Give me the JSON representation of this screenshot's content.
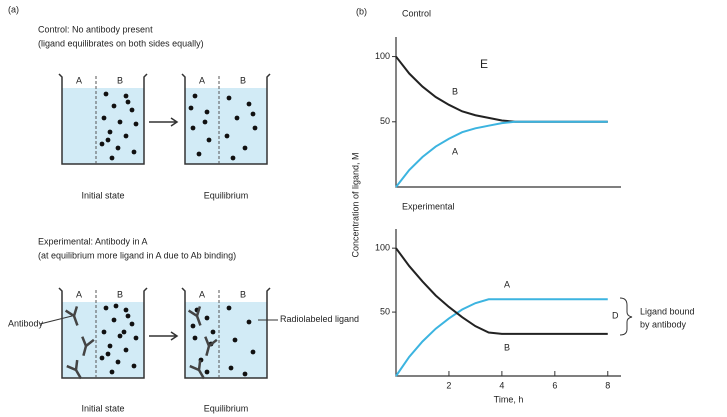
{
  "diagram": {
    "panel_label": "(a)",
    "control": {
      "title": "Control: No antibody present",
      "subtitle": "(ligand equilibrates on both sides equally)",
      "left_label": "A",
      "right_label": "B",
      "initial": "Initial state",
      "final": "Equilibrium"
    },
    "experimental": {
      "title": "Experimental: Antibody in A",
      "subtitle": "(at equilibrium more ligand in A due to Ab binding)",
      "left_label": "A",
      "right_label": "B",
      "initial": "Initial state",
      "final": "Equilibrium",
      "antibody": "Antibody",
      "ligand": "Radiolabeled ligand"
    }
  },
  "panel_b_label": "(b)",
  "chart_data": [
    {
      "type": "line",
      "title": "Control",
      "ylabel": "Concentration of ligand, M",
      "x": [
        0,
        0.5,
        1,
        1.5,
        2,
        2.5,
        3,
        3.5,
        4,
        4.5,
        5,
        6,
        7,
        8
      ],
      "series": [
        {
          "name": "B",
          "color": "#222222",
          "values": [
            100,
            87,
            77,
            69,
            63,
            58,
            55,
            53,
            51,
            50,
            50,
            50,
            50,
            50
          ]
        },
        {
          "name": "A",
          "color": "#3cb4e0",
          "values": [
            0,
            13,
            23,
            31,
            37,
            42,
            45,
            47,
            49,
            50,
            50,
            50,
            50,
            50
          ]
        }
      ],
      "annotations": [
        "E",
        "B",
        "A"
      ],
      "xlim": [
        0,
        8.5
      ],
      "ylim": [
        0,
        115
      ],
      "yticks": [
        50,
        100
      ]
    },
    {
      "type": "line",
      "title": "Experimental",
      "xlabel": "Time, h",
      "x": [
        0,
        0.5,
        1,
        1.5,
        2,
        2.5,
        3,
        3.5,
        4,
        4.5,
        5,
        6,
        7,
        8
      ],
      "series": [
        {
          "name": "A",
          "color": "#3cb4e0",
          "values": [
            0,
            15,
            27,
            37,
            45,
            52,
            57,
            60,
            60,
            60,
            60,
            60,
            60,
            60
          ]
        },
        {
          "name": "B",
          "color": "#222222",
          "values": [
            100,
            86,
            74,
            63,
            54,
            46,
            39,
            34,
            33,
            33,
            33,
            33,
            33,
            33
          ]
        }
      ],
      "annotations": [
        "A",
        "B",
        "D",
        "Ligand bound",
        "by antibody"
      ],
      "xlim": [
        0,
        8.5
      ],
      "ylim": [
        0,
        115
      ],
      "yticks": [
        50,
        100
      ],
      "xticks": [
        2,
        4,
        6,
        8
      ]
    }
  ]
}
